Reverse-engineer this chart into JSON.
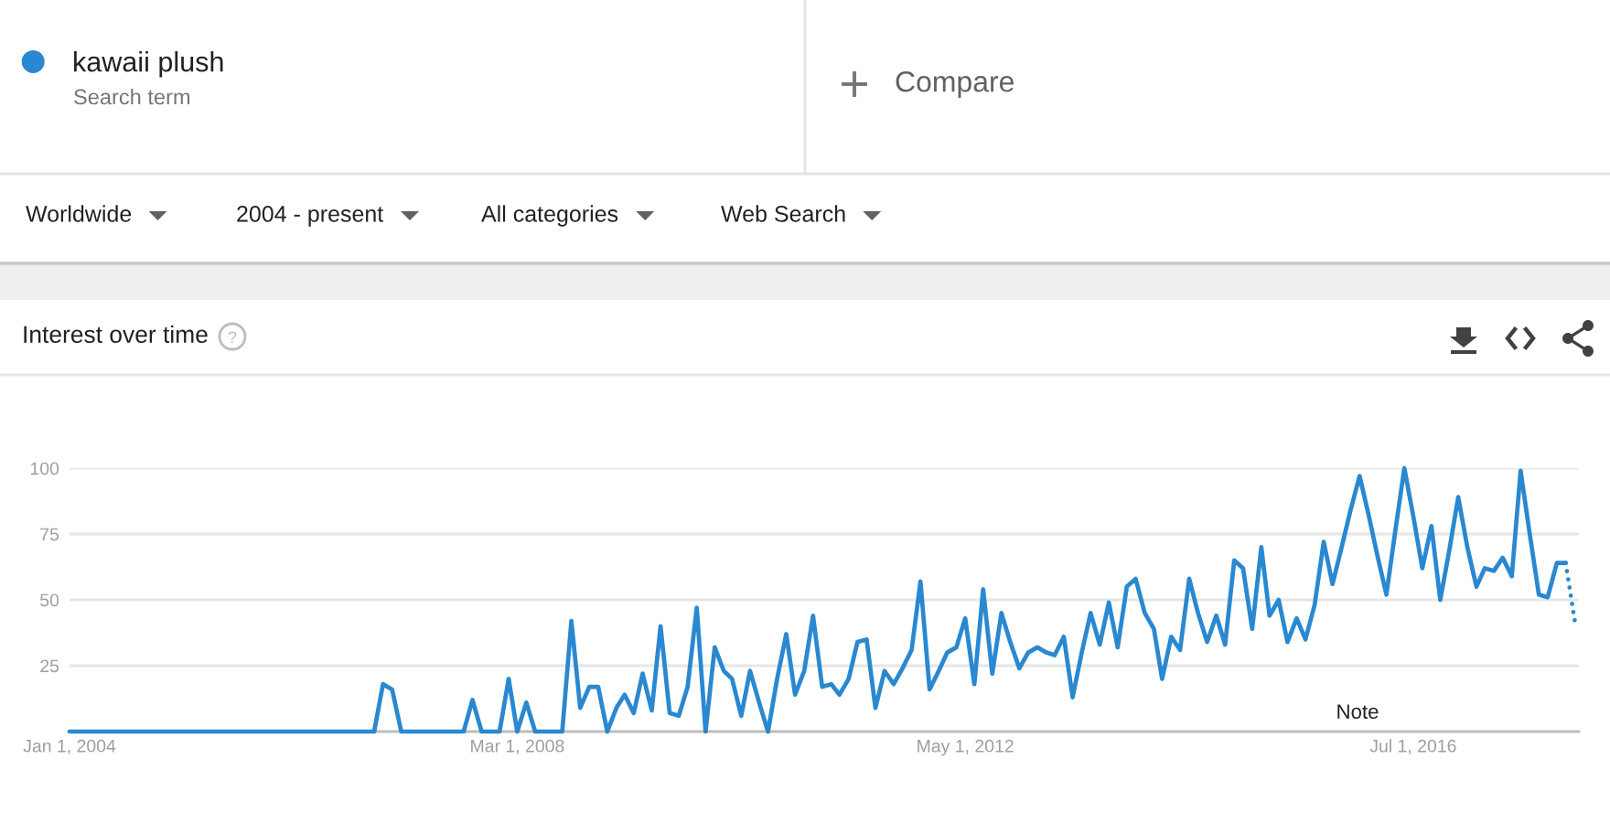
{
  "chart_data": {
    "type": "line",
    "title": "Interest over time",
    "annotations": [
      "Search term",
      "Compare",
      "Worldwide",
      "2004 - present",
      "All categories",
      "Web Search",
      "Note"
    ],
    "series": [
      {
        "name": "kawaii plush",
        "color": "#2a88d0",
        "line_style": "solid",
        "x": [
          "2004-01",
          "2006-11",
          "2006-12",
          "2007-01",
          "2007-02",
          "2007-09",
          "2007-10",
          "2007-11",
          "2008-01",
          "2008-02",
          "2008-03",
          "2008-04",
          "2008-05",
          "2008-08",
          "2008-09",
          "2008-10",
          "2008-11",
          "2008-12",
          "2009-01",
          "2009-02",
          "2009-03",
          "2009-04",
          "2009-05",
          "2009-06",
          "2009-07",
          "2009-08",
          "2009-09",
          "2009-10",
          "2009-11",
          "2009-12",
          "2010-01",
          "2010-02",
          "2010-03",
          "2010-04",
          "2010-05",
          "2010-06",
          "2010-07",
          "2010-08",
          "2010-09",
          "2010-10",
          "2010-11",
          "2010-12",
          "2011-01",
          "2011-02",
          "2011-03",
          "2011-04",
          "2011-05",
          "2011-06",
          "2011-07",
          "2011-08",
          "2011-09",
          "2011-10",
          "2011-11",
          "2011-12",
          "2012-01",
          "2012-02",
          "2012-03",
          "2012-04",
          "2012-05",
          "2012-06",
          "2012-07",
          "2012-08",
          "2012-09",
          "2012-10",
          "2012-11",
          "2012-12",
          "2013-01",
          "2013-02",
          "2013-03",
          "2013-04",
          "2013-05",
          "2013-06",
          "2013-07",
          "2013-08",
          "2013-09",
          "2013-10",
          "2013-11",
          "2013-12",
          "2014-01",
          "2014-02",
          "2014-03",
          "2014-04",
          "2014-05",
          "2014-06",
          "2014-07",
          "2014-08",
          "2014-09",
          "2014-10",
          "2014-11",
          "2014-12",
          "2015-01",
          "2015-02",
          "2015-03",
          "2015-04",
          "2015-05",
          "2015-06",
          "2015-07",
          "2015-08",
          "2015-09",
          "2015-10",
          "2015-11",
          "2015-12",
          "2016-01",
          "2016-02",
          "2016-03",
          "2016-04",
          "2016-05",
          "2016-06",
          "2016-07",
          "2016-08",
          "2016-09",
          "2016-10",
          "2016-11",
          "2016-12",
          "2017-01",
          "2017-02",
          "2017-03",
          "2017-04",
          "2017-05",
          "2017-06",
          "2017-07",
          "2017-08",
          "2017-09",
          "2017-10",
          "2017-11",
          "2017-12"
        ],
        "values": [
          0,
          0,
          18,
          16,
          0,
          0,
          12,
          0,
          0,
          20,
          0,
          11,
          0,
          0,
          42,
          9,
          17,
          17,
          0,
          9,
          14,
          7,
          22,
          8,
          40,
          7,
          6,
          17,
          47,
          0,
          32,
          23,
          20,
          6,
          23,
          11,
          0,
          20,
          37,
          14,
          23,
          44,
          17,
          18,
          14,
          20,
          34,
          35,
          9,
          23,
          18,
          24,
          31,
          57,
          16,
          23,
          30,
          32,
          43,
          18,
          54,
          22,
          45,
          34,
          24,
          30,
          32,
          30,
          29,
          36,
          13,
          30,
          45,
          33,
          49,
          32,
          55,
          58,
          45,
          39,
          20,
          36,
          31,
          58,
          45,
          34,
          44,
          33,
          65,
          62,
          39,
          70,
          44,
          50,
          34,
          43,
          35,
          48,
          72,
          56,
          70,
          84,
          97,
          82,
          67,
          52,
          76,
          100,
          82,
          62,
          78,
          50,
          69,
          89,
          70,
          55,
          62,
          61,
          66,
          59,
          99,
          75,
          52,
          51,
          64,
          64
        ]
      },
      {
        "color": "#2a88d0",
        "line_style": "dotted",
        "x": [
          "2017-12",
          "2018-01"
        ],
        "values": [
          64,
          42
        ]
      }
    ],
    "xlim": [
      "2004-01-01",
      "2018-01-15"
    ],
    "xticks": [
      {
        "value": "2004-01-01",
        "label": "Jan 1, 2004"
      },
      {
        "value": "2008-03-01",
        "label": "Mar 1, 2008"
      },
      {
        "value": "2012-05-01",
        "label": "May 1, 2012"
      },
      {
        "value": "2016-07-01",
        "label": "Jul 1, 2016"
      }
    ],
    "ylim": [
      0,
      100
    ],
    "yticks": [
      25,
      50,
      75,
      100
    ],
    "grid": "y",
    "legend": "top left"
  }
}
